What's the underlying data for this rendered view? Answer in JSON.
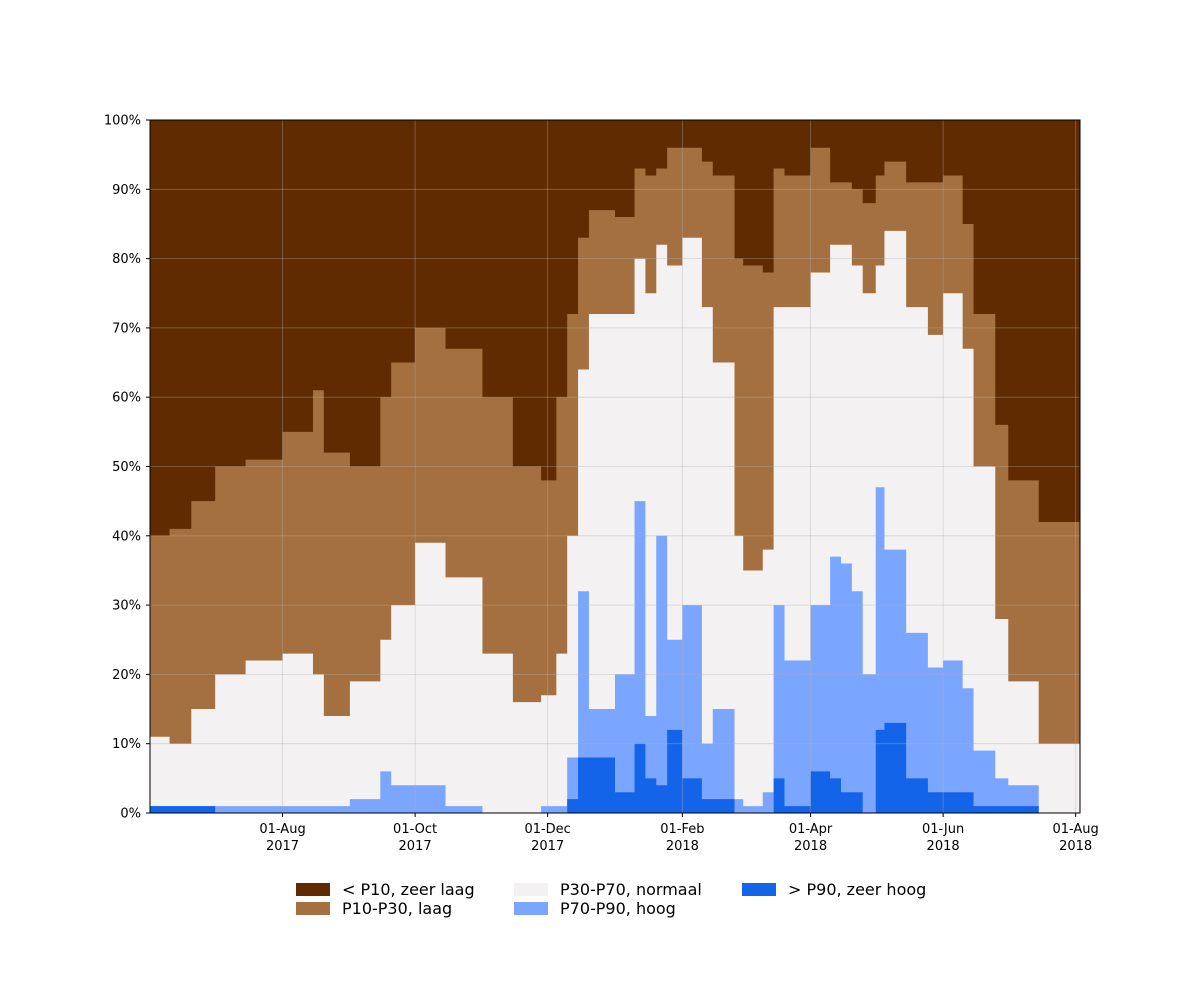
{
  "chart_data": {
    "type": "area",
    "stacked": true,
    "normalized_percent": true,
    "title": "",
    "xlabel": "",
    "ylabel": "",
    "x_range": [
      "2017-06-01",
      "2018-08-03"
    ],
    "ylim": [
      0,
      100
    ],
    "grid": true,
    "legend_position": "bottom",
    "y_ticks": [
      "0%",
      "10%",
      "20%",
      "30%",
      "40%",
      "50%",
      "60%",
      "70%",
      "80%",
      "90%",
      "100%"
    ],
    "x_ticks": [
      {
        "date": "2017-08-01",
        "label1": "01-Aug",
        "label2": "2017"
      },
      {
        "date": "2017-10-01",
        "label1": "01-Oct",
        "label2": "2017"
      },
      {
        "date": "2017-12-01",
        "label1": "01-Dec",
        "label2": "2017"
      },
      {
        "date": "2018-02-01",
        "label1": "01-Feb",
        "label2": "2018"
      },
      {
        "date": "2018-04-01",
        "label1": "01-Apr",
        "label2": "2018"
      },
      {
        "date": "2018-06-01",
        "label1": "01-Jun",
        "label2": "2018"
      },
      {
        "date": "2018-08-01",
        "label1": "01-Aug",
        "label2": "2018"
      }
    ],
    "series": [
      {
        "name": "> P90, zeer hoog",
        "color": "#1464ea"
      },
      {
        "name": "P70-P90, hoog",
        "color": "#7ba6ff"
      },
      {
        "name": "P30-P70, normaal",
        "color": "#f3f1f1"
      },
      {
        "name": "P10-P30, laag",
        "color": "#a5703f"
      },
      {
        "name": "< P10, zeer laag",
        "color": "#602b00"
      }
    ],
    "dates": [
      "2017-06-01",
      "2017-06-10",
      "2017-06-20",
      "2017-07-01",
      "2017-07-15",
      "2017-08-01",
      "2017-08-15",
      "2017-08-20",
      "2017-09-01",
      "2017-09-15",
      "2017-09-20",
      "2017-10-01",
      "2017-10-15",
      "2017-11-01",
      "2017-11-15",
      "2017-11-28",
      "2017-12-05",
      "2017-12-10",
      "2017-12-15",
      "2017-12-20",
      "2018-01-01",
      "2018-01-10",
      "2018-01-15",
      "2018-01-20",
      "2018-01-25",
      "2018-02-01",
      "2018-02-10",
      "2018-02-15",
      "2018-02-25",
      "2018-03-01",
      "2018-03-10",
      "2018-03-15",
      "2018-03-20",
      "2018-04-01",
      "2018-04-10",
      "2018-04-15",
      "2018-04-20",
      "2018-04-25",
      "2018-05-01",
      "2018-05-05",
      "2018-05-15",
      "2018-05-25",
      "2018-06-01",
      "2018-06-10",
      "2018-06-15",
      "2018-06-25",
      "2018-07-01",
      "2018-07-15",
      "2018-08-03"
    ],
    "cumulative_upper_bounds": {
      "> P90, zeer hoog": [
        1,
        1,
        1,
        0,
        0,
        0,
        0,
        0,
        0,
        0,
        0,
        0,
        0,
        0,
        0,
        0,
        0,
        2,
        8,
        8,
        3,
        10,
        5,
        4,
        12,
        5,
        2,
        2,
        0,
        0,
        0,
        5,
        1,
        6,
        5,
        3,
        3,
        0,
        12,
        13,
        5,
        3,
        3,
        3,
        1,
        1,
        1,
        0,
        0
      ],
      "P70-P90, hoog": [
        1,
        1,
        1,
        1,
        1,
        1,
        1,
        1,
        2,
        6,
        4,
        4,
        1,
        0,
        0,
        1,
        1,
        8,
        32,
        15,
        20,
        45,
        14,
        40,
        25,
        30,
        10,
        15,
        2,
        1,
        3,
        30,
        22,
        30,
        37,
        36,
        32,
        20,
        47,
        38,
        26,
        21,
        22,
        18,
        9,
        5,
        4,
        0,
        0
      ],
      "P30-P70, normaal": [
        11,
        10,
        15,
        20,
        22,
        23,
        20,
        14,
        19,
        25,
        30,
        39,
        34,
        23,
        16,
        17,
        23,
        40,
        64,
        72,
        72,
        80,
        75,
        82,
        79,
        83,
        73,
        65,
        40,
        35,
        38,
        73,
        73,
        78,
        82,
        82,
        79,
        75,
        79,
        84,
        73,
        69,
        75,
        67,
        50,
        28,
        19,
        10,
        7
      ],
      "P10-P30, laag": [
        40,
        41,
        45,
        50,
        51,
        55,
        61,
        52,
        50,
        60,
        65,
        70,
        67,
        60,
        50,
        48,
        60,
        72,
        83,
        87,
        86,
        93,
        92,
        93,
        96,
        96,
        94,
        92,
        80,
        79,
        78,
        93,
        92,
        96,
        91,
        91,
        90,
        88,
        92,
        94,
        91,
        91,
        92,
        85,
        72,
        56,
        48,
        42,
        35
      ],
      "< P10, zeer laag": [
        100,
        100,
        100,
        100,
        100,
        100,
        100,
        100,
        100,
        100,
        100,
        100,
        100,
        100,
        100,
        100,
        100,
        100,
        100,
        100,
        100,
        100,
        100,
        100,
        100,
        100,
        100,
        100,
        100,
        100,
        100,
        100,
        100,
        100,
        100,
        100,
        100,
        100,
        100,
        100,
        100,
        100,
        100,
        100,
        100,
        100,
        100,
        100,
        100
      ]
    },
    "legend_order": [
      "< P10, zeer laag",
      "P10-P30, laag",
      "P30-P70, normaal",
      "P70-P90, hoog",
      "> P90, zeer hoog"
    ]
  }
}
